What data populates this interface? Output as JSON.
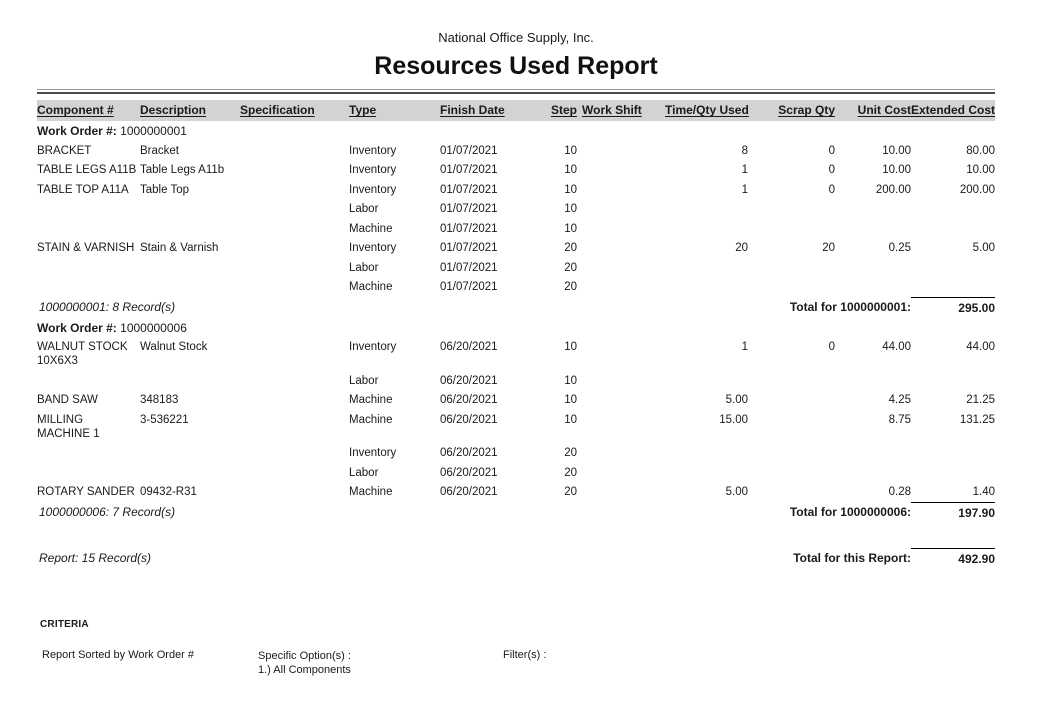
{
  "header": {
    "company": "National Office Supply, Inc.",
    "title": "Resources Used Report"
  },
  "table": {
    "columns": [
      {
        "key": "component",
        "label": "Component #"
      },
      {
        "key": "description",
        "label": "Description"
      },
      {
        "key": "specification",
        "label": "Specification"
      },
      {
        "key": "type",
        "label": "Type"
      },
      {
        "key": "finish_date",
        "label": "Finish Date"
      },
      {
        "key": "step",
        "label": "Step"
      },
      {
        "key": "work_shift",
        "label": "Work Shift"
      },
      {
        "key": "time_qty_used",
        "label": "Time/Qty Used"
      },
      {
        "key": "scrap_qty",
        "label": "Scrap Qty"
      },
      {
        "key": "unit_cost",
        "label": "Unit Cost"
      },
      {
        "key": "extended_cost",
        "label": "Extended Cost"
      }
    ],
    "groups": [
      {
        "work_order_label": "Work Order #:",
        "work_order_number": "1000000001",
        "rows": [
          {
            "component": "BRACKET",
            "description": "Bracket",
            "specification": "",
            "type": "Inventory",
            "finish_date": "01/07/2021",
            "step": "10",
            "work_shift": "",
            "time_qty_used": "8",
            "scrap_qty": "0",
            "unit_cost": "10.00",
            "extended_cost": "80.00"
          },
          {
            "component": "TABLE LEGS A11B",
            "description": "Table Legs A11b",
            "specification": "",
            "type": "Inventory",
            "finish_date": "01/07/2021",
            "step": "10",
            "work_shift": "",
            "time_qty_used": "1",
            "scrap_qty": "0",
            "unit_cost": "10.00",
            "extended_cost": "10.00"
          },
          {
            "component": "TABLE TOP A11A",
            "description": "Table Top",
            "specification": "",
            "type": "Inventory",
            "finish_date": "01/07/2021",
            "step": "10",
            "work_shift": "",
            "time_qty_used": "1",
            "scrap_qty": "0",
            "unit_cost": "200.00",
            "extended_cost": "200.00"
          },
          {
            "component": "",
            "description": "",
            "specification": "",
            "type": "Labor",
            "finish_date": "01/07/2021",
            "step": "10",
            "work_shift": "",
            "time_qty_used": "",
            "scrap_qty": "",
            "unit_cost": "",
            "extended_cost": ""
          },
          {
            "component": "",
            "description": "",
            "specification": "",
            "type": "Machine",
            "finish_date": "01/07/2021",
            "step": "10",
            "work_shift": "",
            "time_qty_used": "",
            "scrap_qty": "",
            "unit_cost": "",
            "extended_cost": ""
          },
          {
            "component": "STAIN & VARNISH",
            "description": "Stain & Varnish",
            "specification": "",
            "type": "Inventory",
            "finish_date": "01/07/2021",
            "step": "20",
            "work_shift": "",
            "time_qty_used": "20",
            "scrap_qty": "20",
            "unit_cost": "0.25",
            "extended_cost": "5.00"
          },
          {
            "component": "",
            "description": "",
            "specification": "",
            "type": "Labor",
            "finish_date": "01/07/2021",
            "step": "20",
            "work_shift": "",
            "time_qty_used": "",
            "scrap_qty": "",
            "unit_cost": "",
            "extended_cost": ""
          },
          {
            "component": "",
            "description": "",
            "specification": "",
            "type": "Machine",
            "finish_date": "01/07/2021",
            "step": "20",
            "work_shift": "",
            "time_qty_used": "",
            "scrap_qty": "",
            "unit_cost": "",
            "extended_cost": ""
          }
        ],
        "record_count": "1000000001: 8 Record(s)",
        "total_label": "Total for 1000000001:",
        "total_value": "295.00"
      },
      {
        "work_order_label": "Work Order #:",
        "work_order_number": "1000000006",
        "rows": [
          {
            "component": "WALNUT STOCK\n10X6X3",
            "description": "Walnut Stock",
            "specification": "",
            "type": "Inventory",
            "finish_date": "06/20/2021",
            "step": "10",
            "work_shift": "",
            "time_qty_used": "1",
            "scrap_qty": "0",
            "unit_cost": "44.00",
            "extended_cost": "44.00"
          },
          {
            "component": "",
            "description": "",
            "specification": "",
            "type": "Labor",
            "finish_date": "06/20/2021",
            "step": "10",
            "work_shift": "",
            "time_qty_used": "",
            "scrap_qty": "",
            "unit_cost": "",
            "extended_cost": ""
          },
          {
            "component": "BAND SAW",
            "description": "348183",
            "specification": "",
            "type": "Machine",
            "finish_date": "06/20/2021",
            "step": "10",
            "work_shift": "",
            "time_qty_used": "5.00",
            "scrap_qty": "",
            "unit_cost": "4.25",
            "extended_cost": "21.25"
          },
          {
            "component": "MILLING\nMACHINE 1",
            "description": "3-536221",
            "specification": "",
            "type": "Machine",
            "finish_date": "06/20/2021",
            "step": "10",
            "work_shift": "",
            "time_qty_used": "15.00",
            "scrap_qty": "",
            "unit_cost": "8.75",
            "extended_cost": "131.25"
          },
          {
            "component": "",
            "description": "",
            "specification": "",
            "type": "Inventory",
            "finish_date": "06/20/2021",
            "step": "20",
            "work_shift": "",
            "time_qty_used": "",
            "scrap_qty": "",
            "unit_cost": "",
            "extended_cost": ""
          },
          {
            "component": "",
            "description": "",
            "specification": "",
            "type": "Labor",
            "finish_date": "06/20/2021",
            "step": "20",
            "work_shift": "",
            "time_qty_used": "",
            "scrap_qty": "",
            "unit_cost": "",
            "extended_cost": ""
          },
          {
            "component": "ROTARY SANDER",
            "description": "09432-R31",
            "specification": "",
            "type": "Machine",
            "finish_date": "06/20/2021",
            "step": "20",
            "work_shift": "",
            "time_qty_used": "5.00",
            "scrap_qty": "",
            "unit_cost": "0.28",
            "extended_cost": "1.40"
          }
        ],
        "record_count": "1000000006: 7 Record(s)",
        "total_label": "Total for 1000000006:",
        "total_value": "197.90"
      }
    ],
    "report_summary": {
      "record_count": "Report: 15 Record(s)",
      "total_label": "Total for this Report:",
      "total_value": "492.90"
    }
  },
  "criteria": {
    "heading": "CRITERIA",
    "sorted_by": "Report Sorted by Work Order #",
    "specific_options_label": "Specific Option(s) :",
    "specific_options": [
      "1.) All Components"
    ],
    "filters_label": "Filter(s) :"
  }
}
